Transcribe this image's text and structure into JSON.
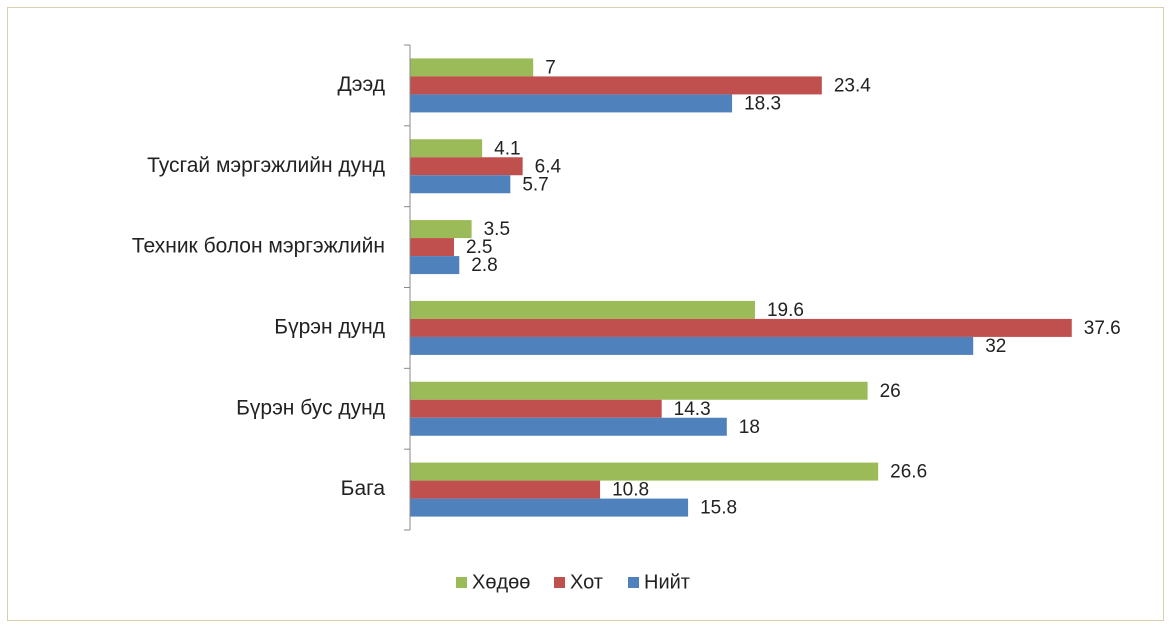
{
  "chart_data": {
    "type": "bar",
    "orientation": "horizontal",
    "categories": [
      "Дээд",
      "Тусгай мэргэжлийн дунд",
      "Техник болон мэргэжлийн",
      "Бүрэн дунд",
      "Бүрэн бус дунд",
      "Бага"
    ],
    "series": [
      {
        "name": "Хөдөө",
        "color": "#9bbb59",
        "values": [
          7,
          4.1,
          3.5,
          19.6,
          26,
          26.6
        ]
      },
      {
        "name": "Хот",
        "color": "#c0504d",
        "values": [
          23.4,
          6.4,
          2.5,
          37.6,
          14.3,
          10.8
        ]
      },
      {
        "name": "Нийт",
        "color": "#4f81bd",
        "values": [
          18.3,
          5.7,
          2.8,
          32,
          18,
          15.8
        ]
      }
    ],
    "xlim": [
      0,
      40
    ],
    "legend": "bottom"
  }
}
